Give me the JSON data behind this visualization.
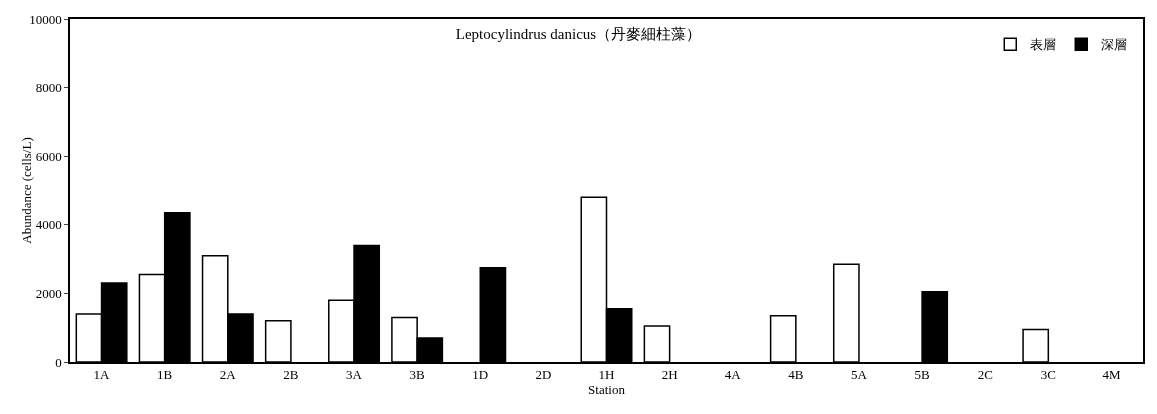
{
  "chart_data": {
    "type": "bar",
    "title": "Leptocylindrus danicus（丹麥細柱藻）",
    "xlabel": "Station",
    "ylabel": "Abundance (cells/L)",
    "categories": [
      "1A",
      "1B",
      "2A",
      "2B",
      "3A",
      "3B",
      "1D",
      "2D",
      "1H",
      "2H",
      "4A",
      "4B",
      "5A",
      "5B",
      "2C",
      "3C",
      "4M"
    ],
    "series": [
      {
        "name": "表層",
        "color": "#ffffff",
        "values": [
          1400,
          2550,
          3100,
          1200,
          1800,
          1300,
          0,
          0,
          4800,
          1050,
          0,
          1350,
          2850,
          0,
          0,
          950,
          0
        ]
      },
      {
        "name": "深層",
        "color": "#000000",
        "values": [
          2300,
          4350,
          1400,
          0,
          3400,
          700,
          2750,
          0,
          1550,
          0,
          0,
          0,
          0,
          2050,
          0,
          0,
          0
        ]
      }
    ],
    "ylim": [
      0,
      10000
    ],
    "yticks": [
      0,
      2000,
      4000,
      6000,
      8000,
      10000
    ],
    "grid": false,
    "legend": "top right"
  }
}
